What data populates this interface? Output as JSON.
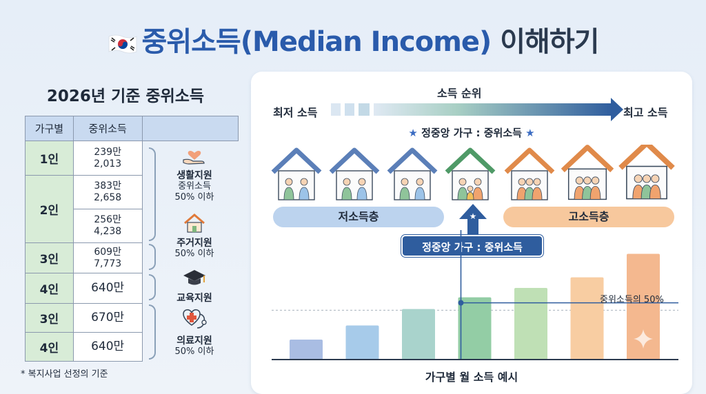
{
  "title": {
    "main": "중위소득(Median Income)",
    "rest": " 이해하기",
    "flag_icon": "korean-flag-icon"
  },
  "left": {
    "title": "2026년 기준 중위소득",
    "table": {
      "headers": [
        "가구별",
        "중위소득"
      ],
      "rows": [
        {
          "category": "1인",
          "values": [
            "239만",
            "2,013"
          ]
        },
        {
          "category": "2인",
          "values": [
            "383만",
            "2,658"
          ],
          "values2": [
            "256만",
            "4,238"
          ]
        },
        {
          "category": "3인",
          "values": [
            "609만",
            "7,773"
          ]
        },
        {
          "category": "4인",
          "values": [
            "640만"
          ]
        },
        {
          "category": "3인",
          "values": [
            "670만"
          ]
        },
        {
          "category": "4인",
          "values": [
            "640만"
          ]
        }
      ]
    },
    "supports": [
      {
        "icon": "heart-hand-icon",
        "title": "생활지원",
        "sub1": "중위소득",
        "sub2": "50% 이하"
      },
      {
        "icon": "house-icon",
        "title": "주거지원",
        "sub1": "50% 이하",
        "sub2": ""
      },
      {
        "icon": "graduation-cap-icon",
        "title": "교육지원",
        "sub1": "",
        "sub2": ""
      },
      {
        "icon": "medical-icon",
        "title": "의료지원",
        "sub1": "50% 이하",
        "sub2": ""
      }
    ],
    "footnote": "* 복지사업 선정의 기준"
  },
  "right": {
    "rank_title": "소득 순위",
    "low_label": "최저 소득",
    "high_label": "최고 소득",
    "middle_label": "정중앙 가구 : 중위소득",
    "low_group": "저소득층",
    "high_group": "고소득층",
    "middle_tag": "정중앙 가구 : 중위소득",
    "half_label": "중위소득의 50%",
    "chart_title": "가구별 월 소득 예시",
    "colors": {
      "arrow": "#2f5d9e",
      "low": "#bcd3ee",
      "high": "#f7c89d"
    }
  },
  "chart_data": {
    "type": "bar",
    "values": [
      1.7,
      2.9,
      4.3,
      5.3,
      6.1,
      7.0,
      9.0
    ],
    "colors": [
      "#a9bde3",
      "#a7cbea",
      "#a9d3cc",
      "#93cda5",
      "#bfe0b5",
      "#f8cda2",
      "#f4b88f"
    ]
  }
}
